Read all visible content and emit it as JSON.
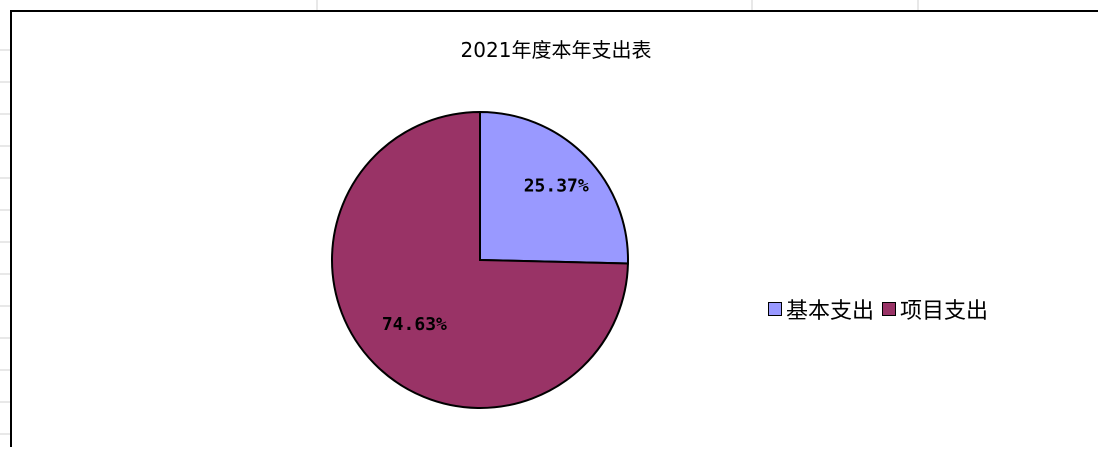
{
  "chart_data": {
    "type": "pie",
    "title": "2021年度本年支出表",
    "slices": [
      {
        "name": "基本支出",
        "value": 25.37,
        "label": "25.37%",
        "color": "#9999ff"
      },
      {
        "name": "项目支出",
        "value": 74.63,
        "label": "74.63%",
        "color": "#993366"
      }
    ],
    "legend_position": "right"
  }
}
